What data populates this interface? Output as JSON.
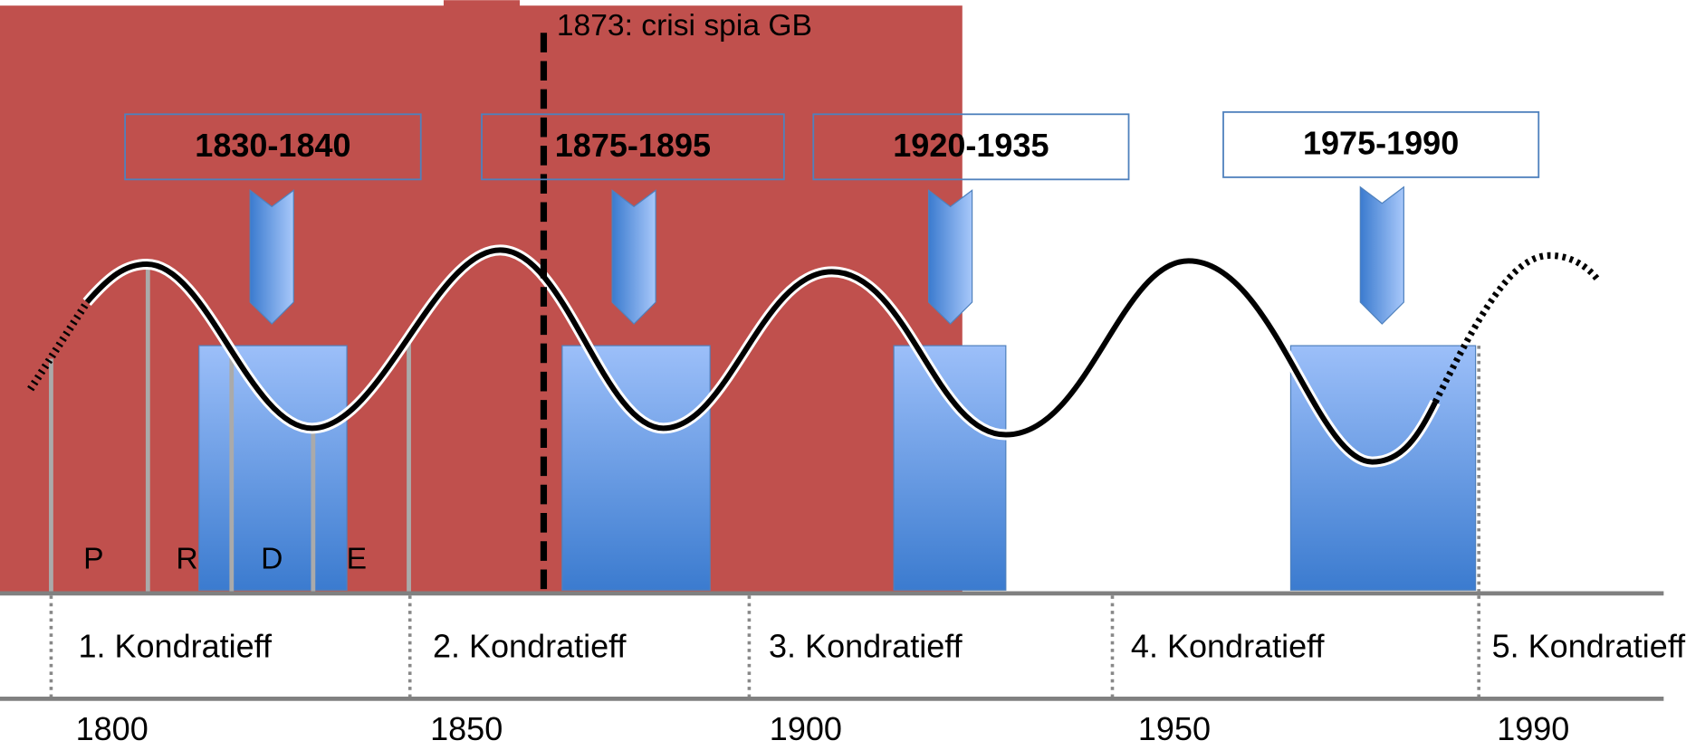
{
  "annotation": "1873: crisi spia GB",
  "periods": [
    "1830-1840",
    "1875-1895",
    "1920-1935",
    "1975-1990"
  ],
  "phases": [
    "P",
    "R",
    "D",
    "E"
  ],
  "waves": [
    "1. Kondratieff",
    "2. Kondratieff",
    "3. Kondratieff",
    "4. Kondratieff",
    "5. Kondratieff"
  ],
  "years": [
    "1800",
    "1850",
    "1900",
    "1950",
    "1990"
  ]
}
